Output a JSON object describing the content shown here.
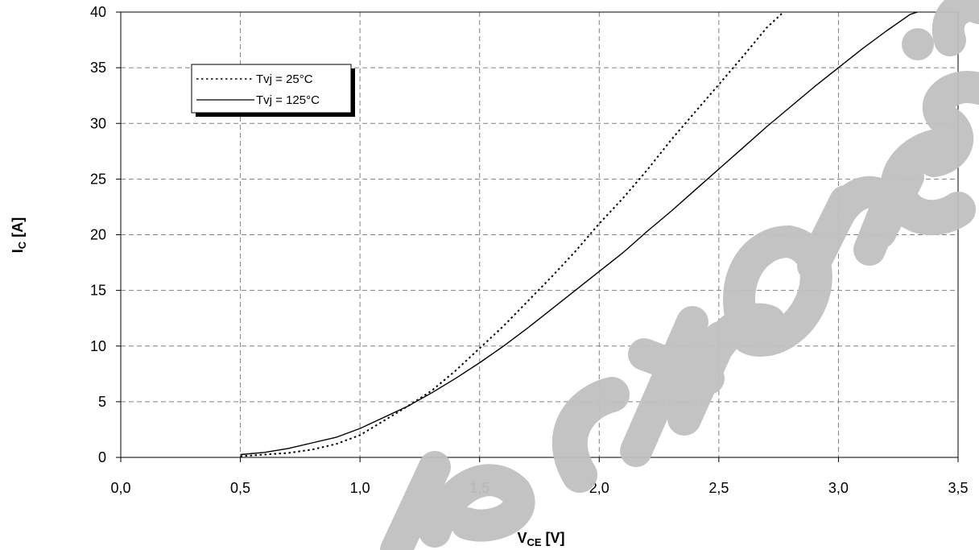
{
  "chart_data": {
    "type": "line",
    "title": "",
    "xlabel": {
      "main": "V",
      "sub": "CE",
      "unit": " [V]"
    },
    "ylabel": {
      "main": "I",
      "sub": "C",
      "unit": " [A]"
    },
    "xlim": [
      0,
      3.5
    ],
    "ylim": [
      0,
      40
    ],
    "x_ticks": [
      "0,0",
      "0,5",
      "1,0",
      "1,5",
      "2,0",
      "2,5",
      "3,0",
      "3,5"
    ],
    "y_ticks": [
      "0",
      "5",
      "10",
      "15",
      "20",
      "25",
      "30",
      "35",
      "40"
    ],
    "grid": true,
    "legend_position": "top-left",
    "series": [
      {
        "name": "Tvj = 25°C",
        "style": "dotted",
        "color": "#000000",
        "points": [
          [
            0.5,
            0.1
          ],
          [
            0.6,
            0.25
          ],
          [
            0.7,
            0.4
          ],
          [
            0.8,
            0.7
          ],
          [
            0.9,
            1.2
          ],
          [
            1.0,
            2.0
          ],
          [
            1.1,
            3.3
          ],
          [
            1.2,
            4.6
          ],
          [
            1.3,
            6.0
          ],
          [
            1.4,
            7.8
          ],
          [
            1.5,
            9.8
          ],
          [
            1.6,
            11.8
          ],
          [
            1.7,
            14.0
          ],
          [
            1.8,
            16.2
          ],
          [
            1.9,
            18.5
          ],
          [
            2.0,
            21.0
          ],
          [
            2.1,
            23.3
          ],
          [
            2.2,
            25.8
          ],
          [
            2.3,
            28.5
          ],
          [
            2.4,
            31.0
          ],
          [
            2.5,
            33.5
          ],
          [
            2.6,
            36.0
          ],
          [
            2.7,
            38.6
          ],
          [
            2.77,
            40.0
          ]
        ]
      },
      {
        "name": "Tvj = 125°C",
        "style": "solid",
        "color": "#000000",
        "points": [
          [
            0.5,
            0.25
          ],
          [
            0.6,
            0.45
          ],
          [
            0.7,
            0.8
          ],
          [
            0.8,
            1.3
          ],
          [
            0.9,
            1.8
          ],
          [
            1.0,
            2.6
          ],
          [
            1.1,
            3.6
          ],
          [
            1.2,
            4.6
          ],
          [
            1.3,
            5.8
          ],
          [
            1.4,
            7.1
          ],
          [
            1.5,
            8.5
          ],
          [
            1.6,
            10.0
          ],
          [
            1.7,
            11.6
          ],
          [
            1.8,
            13.3
          ],
          [
            1.9,
            15.0
          ],
          [
            2.0,
            16.7
          ],
          [
            2.1,
            18.4
          ],
          [
            2.2,
            20.3
          ],
          [
            2.3,
            22.1
          ],
          [
            2.4,
            24.0
          ],
          [
            2.5,
            25.9
          ],
          [
            2.6,
            27.8
          ],
          [
            2.7,
            29.7
          ],
          [
            2.8,
            31.5
          ],
          [
            2.9,
            33.3
          ],
          [
            3.0,
            35.0
          ],
          [
            3.1,
            36.7
          ],
          [
            3.2,
            38.3
          ],
          [
            3.3,
            39.8
          ],
          [
            3.33,
            40.0
          ]
        ]
      }
    ]
  },
  "watermark": {
    "color": "#c0c0c0"
  }
}
